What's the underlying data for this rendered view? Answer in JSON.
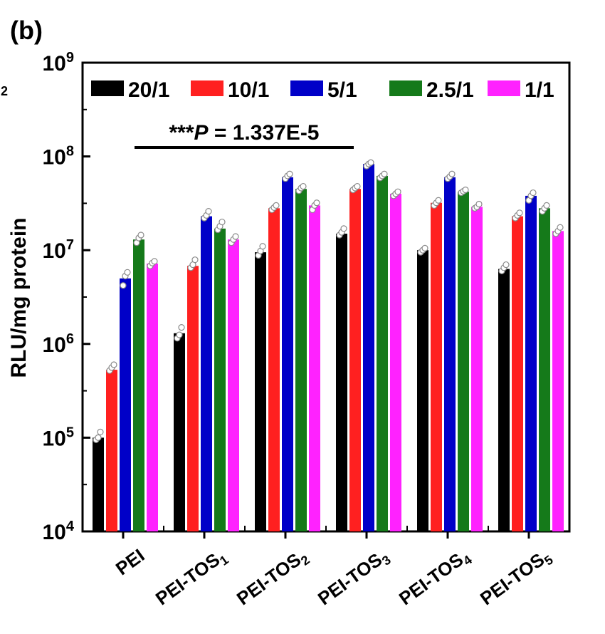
{
  "panel_label": "(b)",
  "edge_fragment": "2",
  "colors": {
    "20/1": "#000000",
    "10/1": "#ff2020",
    "5/1": "#0000c8",
    "2.5/1": "#157a1a",
    "1/1": "#ff22ff"
  },
  "chart_data": {
    "type": "bar",
    "scale": "log",
    "ylabel": "RLU/mg protein",
    "xlabel": "",
    "ylim": [
      10000,
      1000000000
    ],
    "y_ticks": [
      {
        "base": "10",
        "exp": "4",
        "value": 10000
      },
      {
        "base": "10",
        "exp": "5",
        "value": 100000
      },
      {
        "base": "10",
        "exp": "6",
        "value": 1000000
      },
      {
        "base": "10",
        "exp": "7",
        "value": 10000000
      },
      {
        "base": "10",
        "exp": "8",
        "value": 100000000
      },
      {
        "base": "10",
        "exp": "9",
        "value": 1000000000
      }
    ],
    "categories": [
      {
        "main": "PEI",
        "sub": ""
      },
      {
        "main": "PEI-TOS",
        "sub": "1"
      },
      {
        "main": "PEI-TOS",
        "sub": "2"
      },
      {
        "main": "PEI-TOS",
        "sub": "3"
      },
      {
        "main": "PEI-TOS",
        "sub": "4"
      },
      {
        "main": "PEI-TOS",
        "sub": "5"
      }
    ],
    "legend_position": "top",
    "series": [
      {
        "name": "20/1",
        "values": [
          100000,
          1300000,
          9500000,
          15000000,
          10000000,
          6300000
        ]
      },
      {
        "name": "10/1",
        "values": [
          530000,
          6800000,
          28000000,
          45000000,
          32000000,
          23000000
        ]
      },
      {
        "name": "5/1",
        "values": [
          5000000,
          23000000,
          60000000,
          83000000,
          60000000,
          38000000
        ]
      },
      {
        "name": "2.5/1",
        "values": [
          13000000,
          17000000,
          45000000,
          62000000,
          42000000,
          28000000
        ]
      },
      {
        "name": "1/1",
        "values": [
          7200000,
          13000000,
          30000000,
          40000000,
          29000000,
          16000000
        ]
      }
    ],
    "points": [
      [
        [
          95000,
          100000,
          115000
        ],
        [
          520000,
          560000,
          600000
        ],
        [
          4200000,
          5300000,
          5800000
        ],
        [
          12000000,
          13500000,
          14500000
        ],
        [
          6800000,
          7300000,
          7600000
        ]
      ],
      [
        [
          1150000,
          1250000,
          1500000
        ],
        [
          6500000,
          7000000,
          7900000
        ],
        [
          22000000,
          23500000,
          26000000
        ],
        [
          16500000,
          18000000,
          20000000
        ],
        [
          12000000,
          13000000,
          14000000
        ]
      ],
      [
        [
          8800000,
          9800000,
          11000000
        ],
        [
          27000000,
          28500000,
          30000000
        ],
        [
          58000000,
          62000000,
          65000000
        ],
        [
          43000000,
          46000000,
          48000000
        ],
        [
          27000000,
          30000000,
          32000000
        ]
      ],
      [
        [
          14500000,
          15500000,
          17000000
        ],
        [
          44000000,
          46000000,
          48000000
        ],
        [
          79000000,
          83000000,
          86000000
        ],
        [
          59000000,
          62000000,
          65000000
        ],
        [
          38000000,
          40000000,
          42000000
        ]
      ],
      [
        [
          9500000,
          10000000,
          10500000
        ],
        [
          30000000,
          32000000,
          34000000
        ],
        [
          58000000,
          61000000,
          65000000
        ],
        [
          41000000,
          42500000,
          44000000
        ],
        [
          28000000,
          29000000,
          31000000
        ]
      ],
      [
        [
          6000000,
          6500000,
          7000000
        ],
        [
          22000000,
          23500000,
          25000000
        ],
        [
          34000000,
          38000000,
          41000000
        ],
        [
          26000000,
          28000000,
          30000000
        ],
        [
          15000000,
          16000000,
          17500000
        ]
      ]
    ],
    "annotation": {
      "stars": "***",
      "p": "P",
      "text": " = 1.337E-5",
      "from": 0,
      "to": 3
    }
  }
}
